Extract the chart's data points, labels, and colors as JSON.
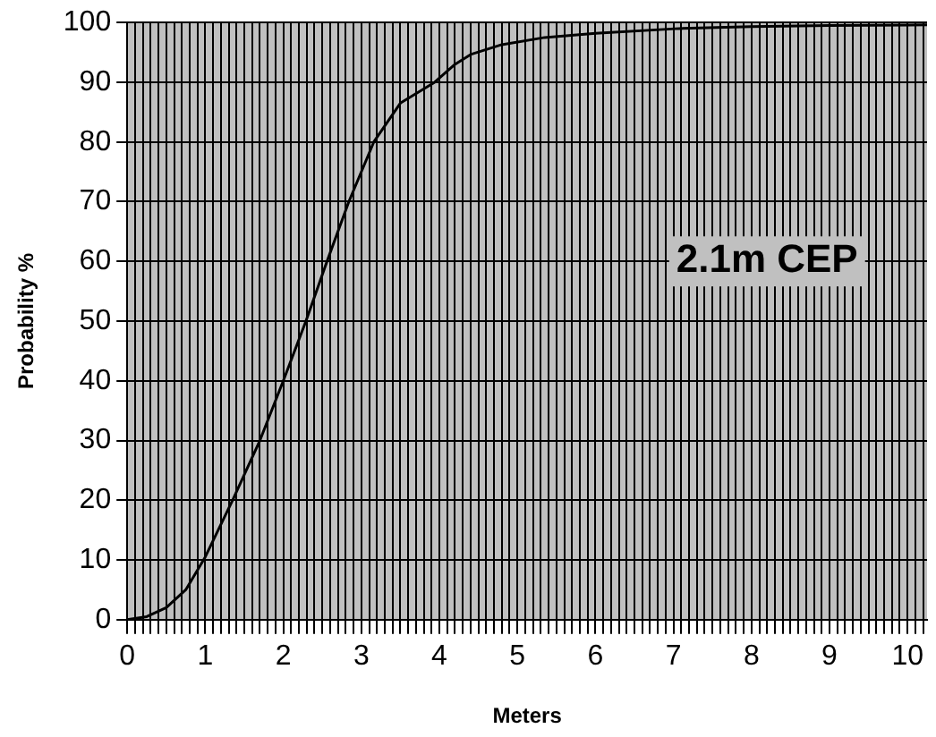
{
  "chart_data": {
    "type": "line",
    "xlabel": "Meters",
    "ylabel": "Probability %",
    "annotations": [
      "2.1m CEP"
    ],
    "series": [
      {
        "color": "#000000",
        "x": [
          0,
          0.25,
          0.5,
          0.75,
          1,
          1.35,
          1.7,
          2.0,
          2.29,
          2.56,
          2.84,
          3.16,
          3.5,
          3.94,
          4.2,
          4.41,
          4.8,
          5.35,
          6,
          7.07,
          8,
          9,
          10.25
        ],
        "values": [
          0,
          0.5,
          2,
          5,
          10.5,
          20,
          30,
          40,
          50,
          60,
          70,
          80,
          86.5,
          90,
          93,
          94.7,
          96.3,
          97.5,
          98.2,
          99,
          99.3,
          99.5,
          99.6
        ]
      }
    ],
    "xlim": [
      0,
      10.25
    ],
    "ylim": [
      0,
      100
    ],
    "yticks": [
      0,
      10,
      20,
      30,
      40,
      50,
      60,
      70,
      80,
      90,
      100
    ],
    "xticks": [
      0,
      {
        "value": 0.1,
        "label": null
      },
      {
        "value": 0.2,
        "label": null
      },
      {
        "value": 0.3,
        "label": null
      },
      {
        "value": 0.4,
        "label": null
      },
      {
        "value": 0.5,
        "label": null
      },
      {
        "value": 0.6,
        "label": null
      },
      {
        "value": 0.7,
        "label": null
      },
      {
        "value": 0.8,
        "label": null
      },
      {
        "value": 0.9,
        "label": null
      },
      1,
      {
        "value": 1.1,
        "label": null
      },
      {
        "value": 1.2,
        "label": null
      },
      {
        "value": 1.3,
        "label": null
      },
      {
        "value": 1.4,
        "label": null
      },
      {
        "value": 1.5,
        "label": null
      },
      {
        "value": 1.6,
        "label": null
      },
      {
        "value": 1.7,
        "label": null
      },
      {
        "value": 1.8,
        "label": null
      },
      {
        "value": 1.9,
        "label": null
      },
      2,
      {
        "value": 2.1,
        "label": null
      },
      {
        "value": 2.2,
        "label": null
      },
      {
        "value": 2.3,
        "label": null
      },
      {
        "value": 2.4,
        "label": null
      },
      {
        "value": 2.5,
        "label": null
      },
      {
        "value": 2.6,
        "label": null
      },
      {
        "value": 2.7,
        "label": null
      },
      {
        "value": 2.8,
        "label": null
      },
      {
        "value": 2.9,
        "label": null
      },
      3,
      {
        "value": 3.1,
        "label": null
      },
      {
        "value": 3.2,
        "label": null
      },
      {
        "value": 3.3,
        "label": null
      },
      {
        "value": 3.4,
        "label": null
      },
      {
        "value": 3.5,
        "label": null
      },
      {
        "value": 3.6,
        "label": null
      },
      {
        "value": 3.7,
        "label": null
      },
      {
        "value": 3.8,
        "label": null
      },
      {
        "value": 3.9,
        "label": null
      },
      4,
      {
        "value": 4.1,
        "label": null
      },
      {
        "value": 4.2,
        "label": null
      },
      {
        "value": 4.3,
        "label": null
      },
      {
        "value": 4.4,
        "label": null
      },
      {
        "value": 4.5,
        "label": null
      },
      {
        "value": 4.6,
        "label": null
      },
      {
        "value": 4.7,
        "label": null
      },
      {
        "value": 4.8,
        "label": null
      },
      {
        "value": 4.9,
        "label": null
      },
      5,
      {
        "value": 5.1,
        "label": null
      },
      {
        "value": 5.2,
        "label": null
      },
      {
        "value": 5.3,
        "label": null
      },
      {
        "value": 5.4,
        "label": null
      },
      {
        "value": 5.5,
        "label": null
      },
      {
        "value": 5.6,
        "label": null
      },
      {
        "value": 5.7,
        "label": null
      },
      {
        "value": 5.8,
        "label": null
      },
      {
        "value": 5.9,
        "label": null
      },
      6,
      {
        "value": 6.1,
        "label": null
      },
      {
        "value": 6.2,
        "label": null
      },
      {
        "value": 6.3,
        "label": null
      },
      {
        "value": 6.4,
        "label": null
      },
      {
        "value": 6.5,
        "label": null
      },
      {
        "value": 6.6,
        "label": null
      },
      {
        "value": 6.7,
        "label": null
      },
      {
        "value": 6.8,
        "label": null
      },
      {
        "value": 6.9,
        "label": null
      },
      7,
      {
        "value": 7.1,
        "label": null
      },
      {
        "value": 7.2,
        "label": null
      },
      {
        "value": 7.3,
        "label": null
      },
      {
        "value": 7.4,
        "label": null
      },
      {
        "value": 7.5,
        "label": null
      },
      {
        "value": 7.6,
        "label": null
      },
      {
        "value": 7.7,
        "label": null
      },
      {
        "value": 7.8,
        "label": null
      },
      {
        "value": 7.9,
        "label": null
      },
      8,
      {
        "value": 8.1,
        "label": null
      },
      {
        "value": 8.2,
        "label": null
      },
      {
        "value": 8.3,
        "label": null
      },
      {
        "value": 8.4,
        "label": null
      },
      {
        "value": 8.5,
        "label": null
      },
      {
        "value": 8.6,
        "label": null
      },
      {
        "value": 8.7,
        "label": null
      },
      {
        "value": 8.8,
        "label": null
      },
      {
        "value": 8.9,
        "label": null
      },
      9,
      {
        "value": 9.1,
        "label": null
      },
      {
        "value": 9.2,
        "label": null
      },
      {
        "value": 9.3,
        "label": null
      },
      {
        "value": 9.4,
        "label": null
      },
      {
        "value": 9.5,
        "label": null
      },
      {
        "value": 9.6,
        "label": null
      },
      {
        "value": 9.7,
        "label": null
      },
      {
        "value": 9.8,
        "label": null
      },
      {
        "value": 9.9,
        "label": null
      },
      10,
      {
        "value": 10.1,
        "label": null
      },
      {
        "value": 10.2,
        "label": null
      }
    ],
    "grid": true,
    "legend": false,
    "marker": "none",
    "line_style": "solid"
  }
}
